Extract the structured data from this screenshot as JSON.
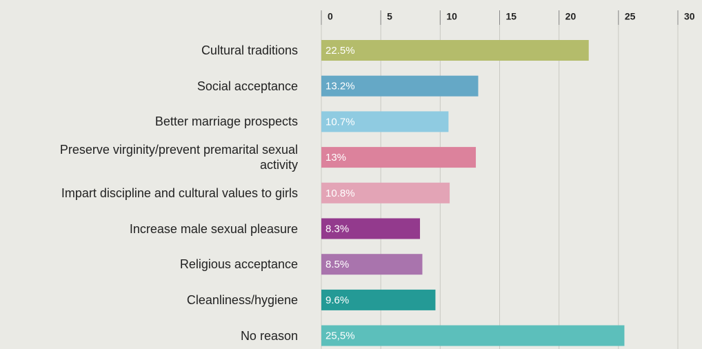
{
  "chart_data": {
    "type": "barh",
    "categories": [
      "Cultural traditions",
      "Social acceptance",
      "Better marriage prospects",
      "Preserve virginity/prevent premarital sexual activity",
      "Impart discipline and cultural values to girls",
      "Increase male sexual pleasure",
      "Religious acceptance",
      "Cleanliness/hygiene",
      "No reason"
    ],
    "values": [
      22.5,
      13.2,
      10.7,
      13,
      10.8,
      8.3,
      8.5,
      9.6,
      25.5
    ],
    "value_labels": [
      "22.5%",
      "13.2%",
      "10.7%",
      "13%",
      "10.8%",
      "8.3%",
      "8.5%",
      "9.6%",
      "25,5%"
    ],
    "colors": [
      "#b4bc6b",
      "#65a8c6",
      "#8fcbe1",
      "#dc829c",
      "#e3a4b6",
      "#933a8d",
      "#a974ad",
      "#249a96",
      "#5cbfbb"
    ],
    "xlim": [
      0,
      30
    ],
    "xticks": [
      0,
      5,
      10,
      15,
      20,
      25,
      30
    ],
    "grid": true
  }
}
